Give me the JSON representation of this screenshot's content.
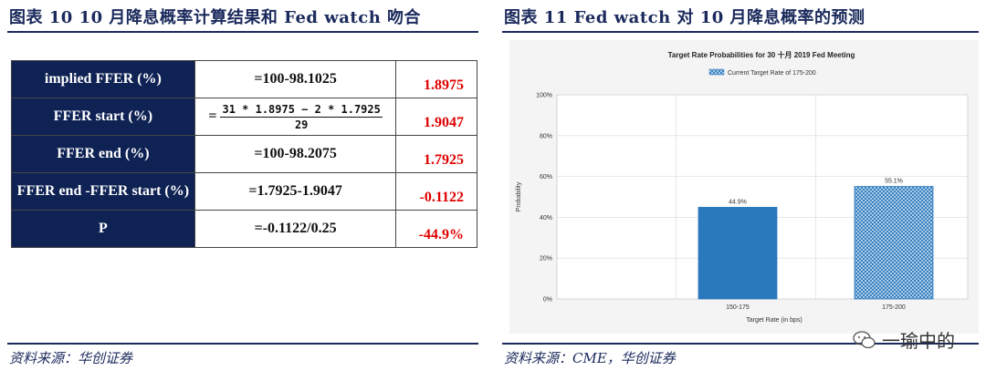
{
  "left": {
    "title": "图表 10   10 月降息概率计算结果和 Fed watch 吻合",
    "source": "资料来源：华创证券",
    "rows": [
      {
        "label": "implied FFER (%)",
        "formula": "=100-98.1025",
        "value": "1.8975"
      },
      {
        "label": "FFER start (%)",
        "formula_eq": "=",
        "formula_num": "31 * 1.8975 − 2 * 1.7925",
        "formula_den": "29",
        "value": "1.9047"
      },
      {
        "label": "FFER end (%)",
        "formula": "=100-98.2075",
        "value": "1.7925"
      },
      {
        "label": "FFER end -FFER start (%)",
        "formula": "=1.7925-1.9047",
        "value": "-0.1122"
      },
      {
        "label": "P",
        "formula": "=-0.1122/0.25",
        "value": "-44.9%"
      }
    ]
  },
  "right": {
    "title": "图表 11   Fed watch 对 10 月降息概率的预测",
    "source": "资料来源：CME，华创证券"
  },
  "watermark": {
    "text": "一瑜中的",
    "icon": "wechat-icon"
  },
  "colors": {
    "navy": "#0f2254",
    "red": "#e00000",
    "bar_solid": "#2a79bd",
    "bar_hatch": "#2a79bd"
  },
  "chart_data": {
    "type": "bar",
    "title": "Target Rate Probabilities for 30 十月 2019 Fed Meeting",
    "legend": "Current Target Rate of 175-200",
    "categories": [
      "150-175",
      "175-200"
    ],
    "values": [
      44.9,
      55.1
    ],
    "value_labels": [
      "44.9%",
      "55.1%"
    ],
    "xlabel": "Target Rate (in bps)",
    "ylabel": "Probability",
    "yticks": [
      "0%",
      "20%",
      "40%",
      "60%",
      "80%",
      "100%"
    ],
    "ylim": [
      0,
      100
    ],
    "legend_position": "top-center",
    "grid": true
  }
}
